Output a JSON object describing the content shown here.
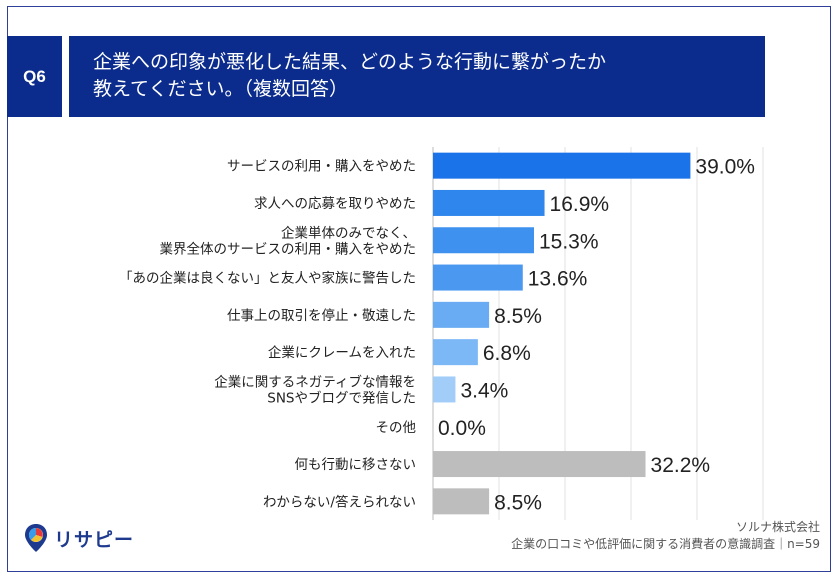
{
  "header": {
    "question_id": "Q6",
    "title": "企業への印象が悪化した結果、どのような行動に繋がったか\n教えてください。（複数回答）"
  },
  "chart_data": {
    "type": "bar",
    "orientation": "horizontal",
    "categories": [
      "サービスの利用・購入をやめた",
      "求人への応募を取りやめた",
      "企業単体のみでなく、\n業界全体のサービスの利用・購入をやめた",
      "「あの企業は良くない」と友人や家族に警告した",
      "仕事上の取引を停止・敬遠した",
      "企業にクレームを入れた",
      "企業に関するネガティブな情報を\nSNSやブログで発信した",
      "その他",
      "何も行動に移さない",
      "わからない/答えられない"
    ],
    "values": [
      39.0,
      16.9,
      15.3,
      13.6,
      8.5,
      6.8,
      3.4,
      0.0,
      32.2,
      8.5
    ],
    "value_labels": [
      "39.0%",
      "16.9%",
      "15.3%",
      "13.6%",
      "8.5%",
      "6.8%",
      "3.4%",
      "0.0%",
      "32.2%",
      "8.5%"
    ],
    "bar_colors": [
      "#1a73e8",
      "#2f86ec",
      "#3e91ef",
      "#4a98f0",
      "#6aacf4",
      "#7db8f6",
      "#a2cdf9",
      "#a2cdf9",
      "#bdbdbd",
      "#bdbdbd"
    ],
    "xlim": [
      0,
      50
    ],
    "grid": true
  },
  "footer": {
    "source_company": "ソルナ株式会社",
    "source_survey": "企業の口コミや低評価に関する消費者の意識調査｜n=59",
    "logo_text": "リサピー"
  }
}
